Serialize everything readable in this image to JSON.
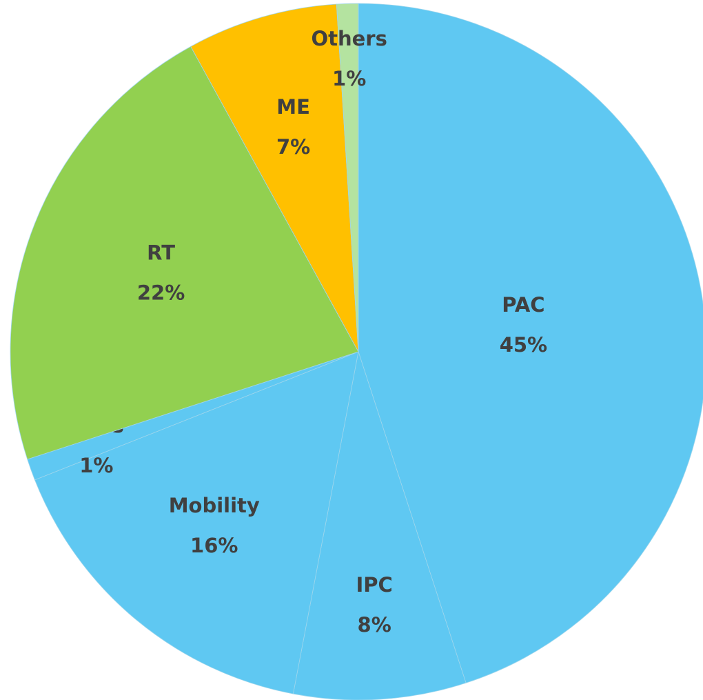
{
  "chart_data": {
    "type": "pie",
    "categories": [
      "PAC",
      "IPC",
      "Mobility",
      "Beds",
      "RT",
      "ME",
      "Others"
    ],
    "values": [
      45,
      8,
      16,
      1,
      22,
      7,
      1
    ],
    "value_labels": [
      "45%",
      "8%",
      "16%",
      "1%",
      "22%",
      "7%",
      "1%"
    ],
    "colors": [
      "#5fc8f2",
      "#5fc8f2",
      "#5fc8f2",
      "#5fc8f2",
      "#92d050",
      "#ffc000",
      "#b4e3a0"
    ]
  }
}
